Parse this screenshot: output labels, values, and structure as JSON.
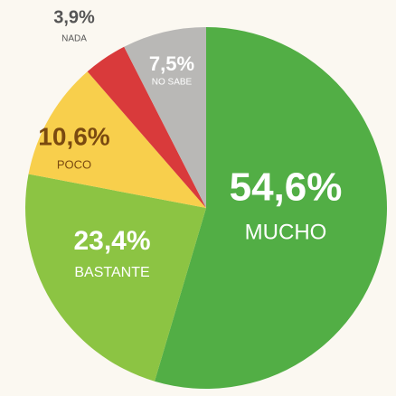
{
  "chart_data": {
    "type": "pie",
    "categories": [
      "MUCHO",
      "BASTANTE",
      "POCO",
      "NADA",
      "NO SABE"
    ],
    "values": [
      54.6,
      23.4,
      10.6,
      3.9,
      7.5
    ],
    "value_labels": [
      "54,6%",
      "23,4%",
      "10,6%",
      "3,9%",
      "7,5%"
    ],
    "colors": [
      "#52ae45",
      "#8cc443",
      "#f8cf4c",
      "#d93a3b",
      "#b9b8b6"
    ]
  }
}
